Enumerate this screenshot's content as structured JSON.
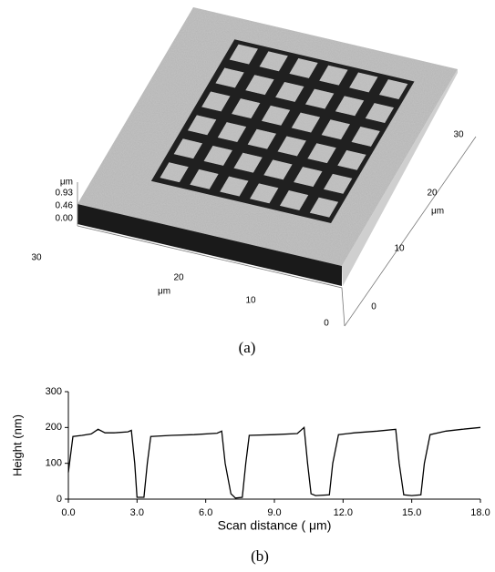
{
  "figure_a": {
    "caption": "(a)",
    "z_axis": {
      "unit": "μm",
      "ticks": [
        "0.93",
        "0.46",
        "0.00"
      ]
    },
    "x_axis": {
      "unit": "μm",
      "ticks": [
        "30",
        "20",
        "10",
        "0"
      ]
    },
    "y_axis": {
      "unit": "μm",
      "ticks": [
        "30",
        "20",
        "10",
        "0"
      ]
    }
  },
  "chart_data": {
    "type": "line",
    "caption": "(b)",
    "xlabel": "Scan distance ( μm)",
    "ylabel": "Height (nm)",
    "color": "#000000",
    "x": [
      0,
      0.2,
      0.6,
      1.0,
      1.3,
      1.6,
      2.0,
      2.6,
      2.75,
      2.9,
      3.0,
      3.3,
      3.45,
      3.6,
      4.5,
      5.5,
      6.5,
      6.7,
      6.85,
      7.1,
      7.3,
      7.6,
      7.75,
      7.9,
      9.0,
      10.0,
      10.3,
      10.45,
      10.6,
      10.8,
      11.4,
      11.55,
      11.8,
      12.5,
      13.5,
      14.3,
      14.45,
      14.65,
      15.0,
      15.4,
      15.55,
      15.8,
      16.5,
      17.2,
      18.0
    ],
    "values": [
      75,
      175,
      178,
      182,
      195,
      185,
      185,
      188,
      192,
      100,
      5,
      5,
      100,
      175,
      178,
      180,
      184,
      190,
      100,
      15,
      3,
      5,
      100,
      178,
      180,
      183,
      200,
      100,
      15,
      10,
      12,
      100,
      180,
      185,
      190,
      195,
      100,
      12,
      10,
      12,
      100,
      180,
      190,
      195,
      200
    ],
    "xlim": [
      0,
      18
    ],
    "ylim": [
      0,
      300
    ],
    "xticks": [
      {
        "value": 0,
        "label": "0.0"
      },
      {
        "value": 3,
        "label": "3.0"
      },
      {
        "value": 6,
        "label": "6.0"
      },
      {
        "value": 9,
        "label": "9.0"
      },
      {
        "value": 12,
        "label": "12.0"
      },
      {
        "value": 15,
        "label": "15.0"
      },
      {
        "value": 18,
        "label": "18.0"
      }
    ],
    "yticks": [
      0,
      100,
      200,
      300
    ]
  }
}
